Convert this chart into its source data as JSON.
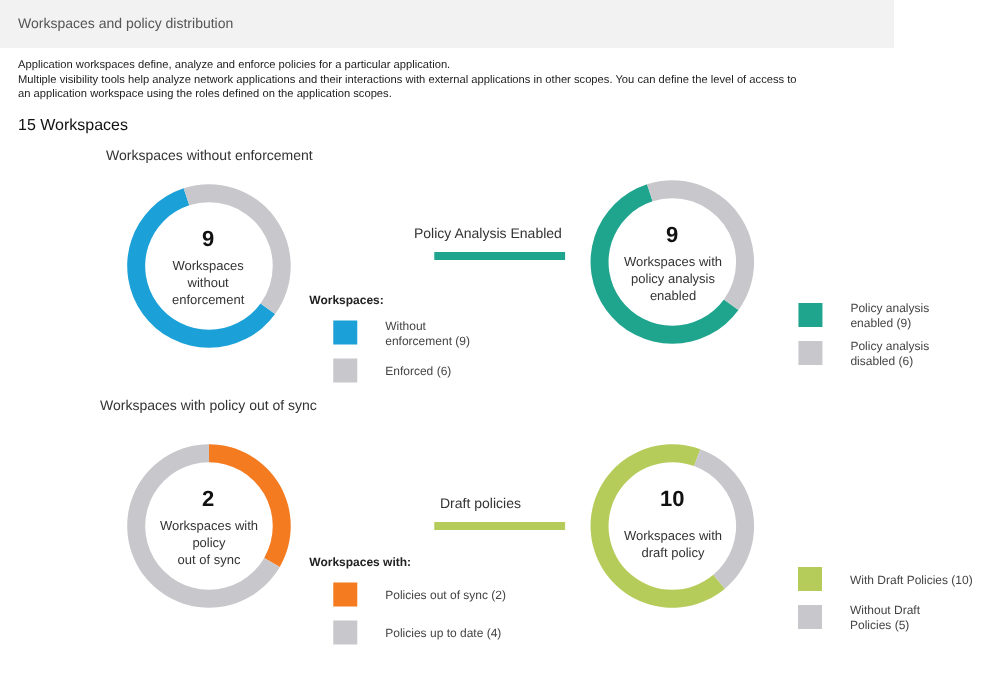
{
  "chart_data": [
    {
      "type": "donut",
      "title": "Workspaces without enforcement",
      "legend_title": "Workspaces:",
      "legend": "right",
      "categories": [
        "Without\nenforcement (9)",
        "Enforced (6)"
      ],
      "values": [
        9,
        6
      ],
      "colors": [
        "#1ba0d7",
        "#c8c8cc"
      ],
      "annotations": [
        "Workspaces and policy distribution",
        "Application workspaces define, analyze and enforce policies for a particular application.\nMultiple visibility tools help analyze network applications and their interactions with external applications in other scopes. You can define the level of access to\nan application workspace using the roles defined on the application scopes.",
        "15 Workspaces",
        "9",
        "Workspaces\nwithout\nenforcement"
      ]
    },
    {
      "type": "donut",
      "title": "Policy Analysis Enabled",
      "legend": "right",
      "categories": [
        "Policy analysis\nenabled (9)",
        "Policy analysis\ndisabled (6)"
      ],
      "values": [
        9,
        6
      ],
      "colors": [
        "#1fa58e",
        "#c8c8cc"
      ],
      "annotations": [
        "9",
        "Workspaces with\npolicy analysis\nenabled"
      ]
    },
    {
      "type": "donut",
      "title": "Workspaces with policy out of sync",
      "legend_title": "Workspaces with:",
      "legend": "right",
      "categories": [
        "Policies out of sync (2)",
        "Policies up to date (4)"
      ],
      "values": [
        2,
        4
      ],
      "colors": [
        "#f47b20",
        "#c8c8cc"
      ],
      "annotations": [
        "2",
        "Workspaces with\npolicy\nout of sync"
      ]
    },
    {
      "type": "donut",
      "title": "Draft policies",
      "legend": "right",
      "categories": [
        "With Draft Policies (10)",
        "Without Draft\nPolicies (5)"
      ],
      "values": [
        10,
        5
      ],
      "colors": [
        "#b5cc5a",
        "#c8c8cc"
      ],
      "annotations": [
        "10",
        "Workspaces with\ndraft policy"
      ]
    }
  ]
}
